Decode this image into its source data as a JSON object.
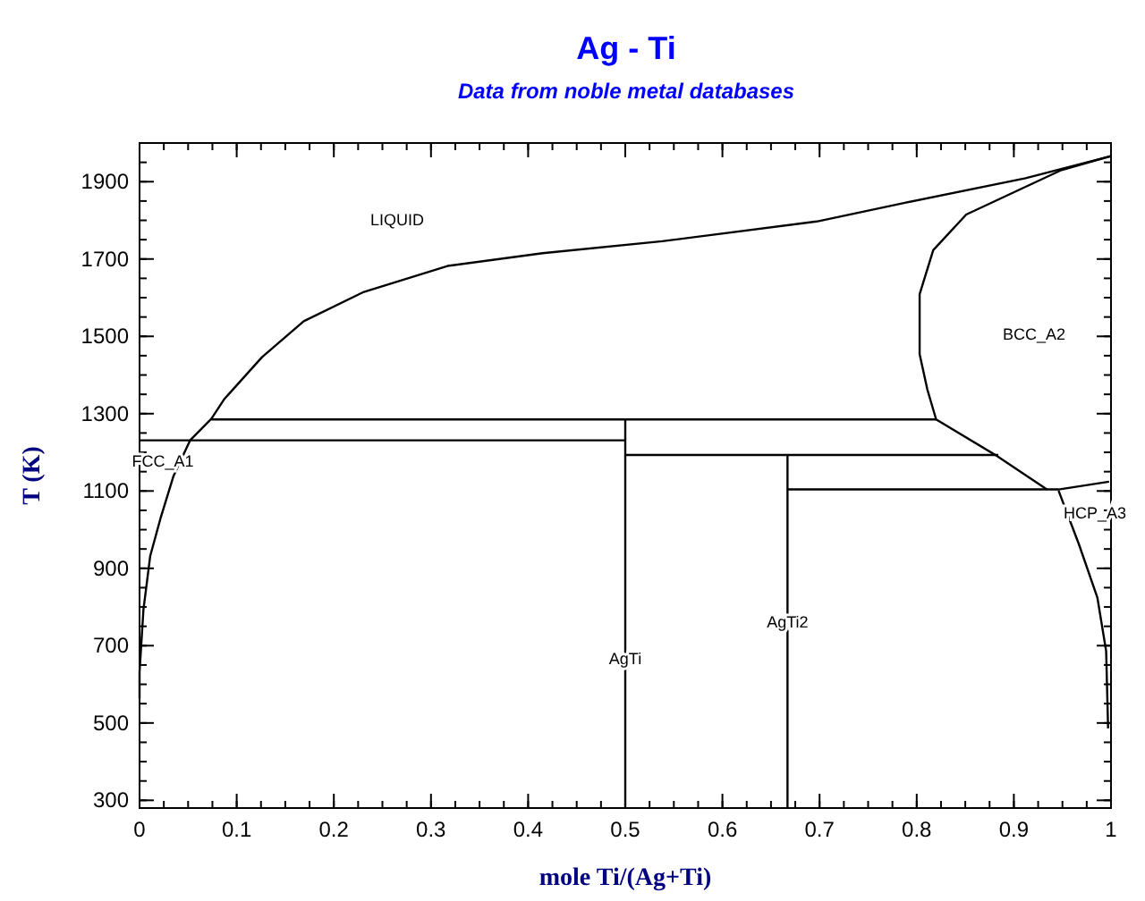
{
  "chart_data": {
    "type": "line",
    "title": "Ag - Ti",
    "subtitle": "Data from noble metal databases",
    "xlabel": "mole Ti/(Ag+Ti)",
    "ylabel": "T (K)",
    "xlim": [
      0,
      1
    ],
    "ylim": [
      280,
      2000
    ],
    "xticks": [
      0,
      0.1,
      0.2,
      0.3,
      0.4,
      0.5,
      0.6,
      0.7,
      0.8,
      0.9,
      1
    ],
    "yticks": [
      300,
      500,
      700,
      900,
      1100,
      1300,
      1500,
      1700,
      1900
    ],
    "grid": false,
    "marker": "none",
    "line_style": "solid",
    "series": [
      {
        "color": "#000000",
        "x": [
          0,
          0,
          0.004,
          0.011,
          0.022,
          0.035,
          0.052,
          0.074,
          0.087,
          0.126,
          0.169,
          0.231,
          0.317,
          0.415,
          0.538,
          0.697,
          0.789,
          0.912,
          1.0
        ],
        "values": [
          563,
          632,
          793,
          932,
          1033,
          1139,
          1231,
          1287,
          1337,
          1446,
          1539,
          1615,
          1682,
          1715,
          1746,
          1797,
          1846,
          1909,
          1966
        ]
      },
      {
        "color": "#000000",
        "x": [
          1.0,
          0.949,
          0.851,
          0.817,
          0.803,
          0.803,
          0.811,
          0.82,
          0.881,
          0.934
        ],
        "values": [
          1966,
          1930,
          1815,
          1723,
          1609,
          1454,
          1362,
          1285,
          1193,
          1104
        ]
      },
      {
        "color": "#000000",
        "x": [
          0.667,
          0.934,
          0.946,
          0.998
        ],
        "values": [
          1104,
          1104,
          1104,
          1124
        ]
      },
      {
        "color": "#000000",
        "x": [
          0.946,
          0.967,
          0.986,
          0.995,
          0.997
        ],
        "values": [
          1101,
          962,
          824,
          686,
          486
        ]
      },
      {
        "color": "#000000",
        "x": [
          0.074,
          0.82
        ],
        "values": [
          1285,
          1285
        ]
      },
      {
        "color": "#000000",
        "x": [
          0,
          0.5
        ],
        "values": [
          1231,
          1231
        ]
      },
      {
        "color": "#000000",
        "x": [
          0.5,
          0.884
        ],
        "values": [
          1193,
          1193
        ]
      },
      {
        "color": "#000000",
        "x": [
          0.5,
          0.5
        ],
        "values": [
          280,
          1285
        ]
      },
      {
        "color": "#000000",
        "x": [
          0.667,
          0.667
        ],
        "values": [
          280,
          1193
        ]
      }
    ],
    "annotations": [
      "LIQUID",
      "BCC_A2",
      "FCC_A1",
      {
        "text": "AgTi",
        "x": 0.5,
        "y": 670
      },
      {
        "text": "AgTi2",
        "x": 0.667,
        "y": 765
      },
      "HCP_A3"
    ]
  }
}
